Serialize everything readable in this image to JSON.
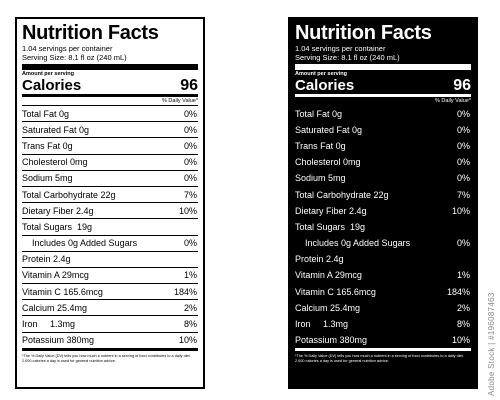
{
  "labels": [
    {
      "theme": "light",
      "title": "Nutrition Facts",
      "servings": "1.04 servings per container",
      "serving_size": "Serving Size: 8.1 fl oz (240 mL)",
      "amount_per_serving": "Amount per serving",
      "calories_label": "Calories",
      "calories_value": "96",
      "dv_header": "% Daily Value*",
      "nutrients": [
        {
          "label": "Total Fat 0g",
          "dv": "0%"
        },
        {
          "label": "Saturated Fat 0g",
          "dv": "0%"
        },
        {
          "label": "Trans Fat 0g",
          "dv": "0%"
        },
        {
          "label": "Cholesterol 0mg",
          "dv": "0%"
        },
        {
          "label": "Sodium 5mg",
          "dv": "0%"
        },
        {
          "label": "Total Carbohydrate 22g",
          "dv": "7%"
        },
        {
          "label": "Dietary Fiber 2.4g",
          "dv": "10%"
        },
        {
          "label": "Total Sugars  19g",
          "dv": ""
        },
        {
          "label": "Includes 0g Added Sugars",
          "dv": "0%"
        },
        {
          "label": "Protein 2.4g",
          "dv": ""
        },
        {
          "label": "Vitamin A 29mcg",
          "dv": "1%"
        },
        {
          "label": "Vitamin C 165.6mcg",
          "dv": "184%"
        },
        {
          "label": "Calcium 25.4mg",
          "dv": "2%"
        },
        {
          "label": "Iron     1.3mg",
          "dv": "8%"
        },
        {
          "label": "Potassium 380mg",
          "dv": "10%"
        }
      ],
      "footnote": "*The % Daily Value (DV) tells you how much a nutrient in a serving of food contributes to a daily diet. 2,000 calories a day is used for general nutrition advice."
    },
    {
      "theme": "dark",
      "title": "Nutrition Facts",
      "servings": "1.04 servings per container",
      "serving_size": "Serving Size: 8.1 fl oz (240 mL)",
      "amount_per_serving": "Amount per serving",
      "calories_label": "Calories",
      "calories_value": "96",
      "dv_header": "% Daily Value*",
      "nutrients": [
        {
          "label": "Total Fat 0g",
          "dv": "0%"
        },
        {
          "label": "Saturated Fat 0g",
          "dv": "0%"
        },
        {
          "label": "Trans Fat 0g",
          "dv": "0%"
        },
        {
          "label": "Cholesterol 0mg",
          "dv": "0%"
        },
        {
          "label": "Sodium 5mg",
          "dv": "0%"
        },
        {
          "label": "Total Carbohydrate 22g",
          "dv": "7%"
        },
        {
          "label": "Dietary Fiber 2.4g",
          "dv": "10%"
        },
        {
          "label": "Total Sugars  19g",
          "dv": ""
        },
        {
          "label": "Includes 0g Added Sugars",
          "dv": "0%"
        },
        {
          "label": "Protein 2.4g",
          "dv": ""
        },
        {
          "label": "Vitamin A 29mcg",
          "dv": "1%"
        },
        {
          "label": "Vitamin C 165.6mcg",
          "dv": "184%"
        },
        {
          "label": "Calcium 25.4mg",
          "dv": "2%"
        },
        {
          "label": "Iron     1.3mg",
          "dv": "8%"
        },
        {
          "label": "Potassium 380mg",
          "dv": "10%"
        }
      ],
      "footnote": "*The % Daily Value (DV) tells you how much a nutrient in a serving of food contributes to a daily diet. 2,000 calories a day is used for general nutrition advice."
    }
  ],
  "stock_id": "Adobe Stock | #196087463"
}
